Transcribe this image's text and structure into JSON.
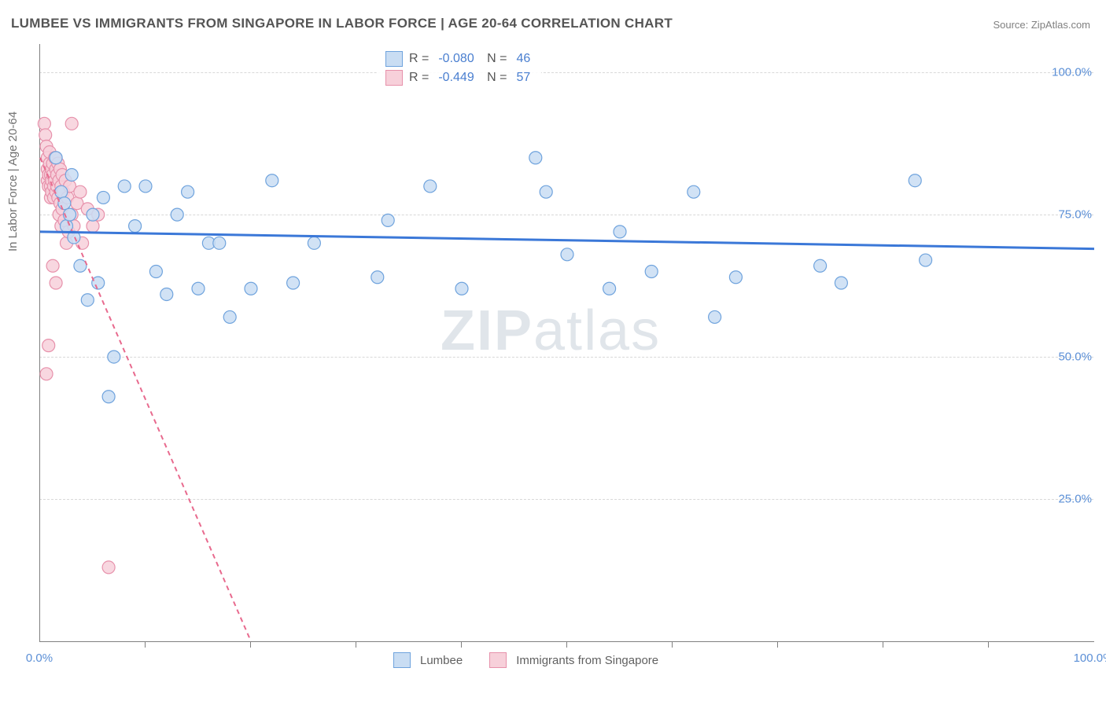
{
  "chart": {
    "type": "scatter",
    "title": "LUMBEE VS IMMIGRANTS FROM SINGAPORE IN LABOR FORCE | AGE 20-64 CORRELATION CHART",
    "source_label": "Source: ZipAtlas.com",
    "watermark_a": "ZIP",
    "watermark_b": "atlas",
    "ylabel": "In Labor Force | Age 20-64",
    "background_color": "#ffffff",
    "grid_color": "#d8d8d8",
    "axis_color": "#808080",
    "label_color": "#5b8fd6",
    "title_color": "#555555",
    "title_fontsize": 17,
    "label_fontsize": 15,
    "xlim": [
      0,
      100
    ],
    "ylim": [
      0,
      105
    ],
    "xtick_start": 10,
    "xtick_step": 10,
    "xtick_labels": {
      "0": "0.0%",
      "100": "100.0%"
    },
    "ytick_labels": {
      "25": "25.0%",
      "50": "50.0%",
      "75": "75.0%",
      "100": "100.0%"
    },
    "marker_radius": 8,
    "series": [
      {
        "name": "Lumbee",
        "key": "lumbee",
        "fill": "#c9ddf3",
        "stroke": "#6fa3dd",
        "trend_color": "#3b78d8",
        "trend_width": 3,
        "trend_dash": "none",
        "R": "-0.080",
        "N": "46",
        "trend": {
          "x1": 0,
          "y1": 72,
          "x2": 100,
          "y2": 69
        },
        "points": [
          [
            1.5,
            85
          ],
          [
            2.0,
            79
          ],
          [
            2.3,
            77
          ],
          [
            2.5,
            73
          ],
          [
            2.8,
            75
          ],
          [
            3.0,
            82
          ],
          [
            3.2,
            71
          ],
          [
            3.8,
            66
          ],
          [
            4.5,
            60
          ],
          [
            5.0,
            75
          ],
          [
            5.5,
            63
          ],
          [
            6.0,
            78
          ],
          [
            6.5,
            43
          ],
          [
            7.0,
            50
          ],
          [
            8.0,
            80
          ],
          [
            9.0,
            73
          ],
          [
            10.0,
            80
          ],
          [
            11.0,
            65
          ],
          [
            12.0,
            61
          ],
          [
            13.0,
            75
          ],
          [
            14.0,
            79
          ],
          [
            15.0,
            62
          ],
          [
            16.0,
            70
          ],
          [
            17.0,
            70
          ],
          [
            18.0,
            57
          ],
          [
            20.0,
            62
          ],
          [
            22.0,
            81
          ],
          [
            24.0,
            63
          ],
          [
            26.0,
            70
          ],
          [
            32.0,
            64
          ],
          [
            33.0,
            74
          ],
          [
            37.0,
            80
          ],
          [
            40.0,
            62
          ],
          [
            47.0,
            85
          ],
          [
            48.0,
            79
          ],
          [
            50.0,
            68
          ],
          [
            54.0,
            62
          ],
          [
            55.0,
            72
          ],
          [
            58.0,
            65
          ],
          [
            62.0,
            79
          ],
          [
            64.0,
            57
          ],
          [
            66.0,
            64
          ],
          [
            74.0,
            66
          ],
          [
            76.0,
            63
          ],
          [
            83.0,
            81
          ],
          [
            84.0,
            67
          ]
        ]
      },
      {
        "name": "Immigrants from Singapore",
        "key": "singapore",
        "fill": "#f7d0da",
        "stroke": "#e791ab",
        "trend_color": "#e86a8e",
        "trend_width": 2,
        "trend_dash": "6 5",
        "R": "-0.449",
        "N": "57",
        "trend": {
          "x1": 0,
          "y1": 85,
          "x2": 20,
          "y2": 0
        },
        "points": [
          [
            0.4,
            91
          ],
          [
            0.5,
            89
          ],
          [
            0.6,
            87
          ],
          [
            0.7,
            85
          ],
          [
            0.7,
            83
          ],
          [
            0.7,
            81
          ],
          [
            0.8,
            82
          ],
          [
            0.8,
            80
          ],
          [
            0.9,
            84
          ],
          [
            0.9,
            86
          ],
          [
            1.0,
            82
          ],
          [
            1.0,
            80
          ],
          [
            1.0,
            78
          ],
          [
            1.1,
            83
          ],
          [
            1.1,
            81
          ],
          [
            1.1,
            79
          ],
          [
            1.2,
            84
          ],
          [
            1.2,
            82
          ],
          [
            1.3,
            80
          ],
          [
            1.3,
            78
          ],
          [
            1.4,
            85
          ],
          [
            1.4,
            81
          ],
          [
            1.5,
            83
          ],
          [
            1.5,
            79
          ],
          [
            1.6,
            82
          ],
          [
            1.6,
            80
          ],
          [
            1.7,
            84
          ],
          [
            1.7,
            78
          ],
          [
            1.8,
            81
          ],
          [
            1.8,
            75
          ],
          [
            1.9,
            83
          ],
          [
            1.9,
            77
          ],
          [
            2.0,
            80
          ],
          [
            2.0,
            73
          ],
          [
            2.1,
            82
          ],
          [
            2.1,
            76
          ],
          [
            2.2,
            79
          ],
          [
            2.3,
            74
          ],
          [
            2.4,
            81
          ],
          [
            2.5,
            70
          ],
          [
            2.6,
            78
          ],
          [
            2.7,
            72
          ],
          [
            2.8,
            80
          ],
          [
            3.0,
            75
          ],
          [
            3.2,
            73
          ],
          [
            3.5,
            77
          ],
          [
            3.8,
            79
          ],
          [
            4.0,
            70
          ],
          [
            4.5,
            76
          ],
          [
            5.0,
            73
          ],
          [
            5.5,
            75
          ],
          [
            1.2,
            66
          ],
          [
            1.5,
            63
          ],
          [
            0.8,
            52
          ],
          [
            0.6,
            47
          ],
          [
            6.5,
            13
          ],
          [
            3.0,
            91
          ]
        ]
      }
    ],
    "legend_bottom": [
      {
        "key": "lumbee",
        "label": "Lumbee"
      },
      {
        "key": "singapore",
        "label": "Immigrants from Singapore"
      }
    ]
  }
}
